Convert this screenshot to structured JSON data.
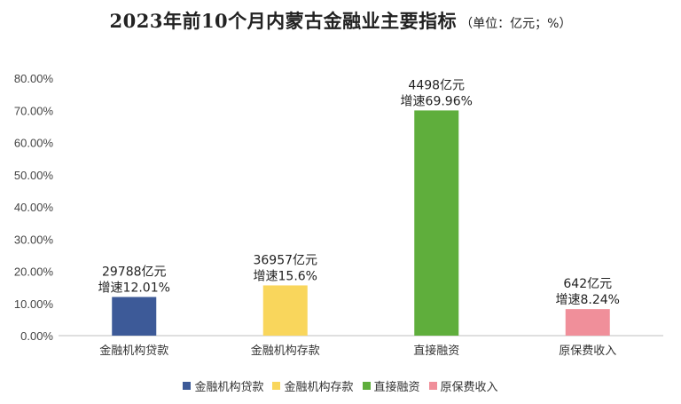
{
  "title": "2023年前10个月内蒙古金融业主要指标",
  "unit_note": "（单位：亿元；%）",
  "chart_data": {
    "type": "bar",
    "title": "2023年前10个月内蒙古金融业主要指标",
    "categories": [
      "金融机构贷款",
      "金融机构存款",
      "直接融资",
      "原保费收入"
    ],
    "values": [
      12.01,
      15.6,
      69.96,
      8.24
    ],
    "amount_labels": [
      "29788亿元",
      "36957亿元",
      "4498亿元",
      "642亿元"
    ],
    "growth_labels": [
      "增速12.01%",
      "增速15.6%",
      "增速69.96%",
      "增速8.24%"
    ],
    "colors": [
      "#3d5a98",
      "#f9d65c",
      "#5fae3c",
      "#f08f9a"
    ],
    "ylim": [
      0,
      80
    ],
    "yticks": [
      "0.00%",
      "10.00%",
      "20.00%",
      "30.00%",
      "40.00%",
      "50.00%",
      "60.00%",
      "70.00%",
      "80.00%"
    ],
    "legend_position": "bottom",
    "grid": false
  }
}
